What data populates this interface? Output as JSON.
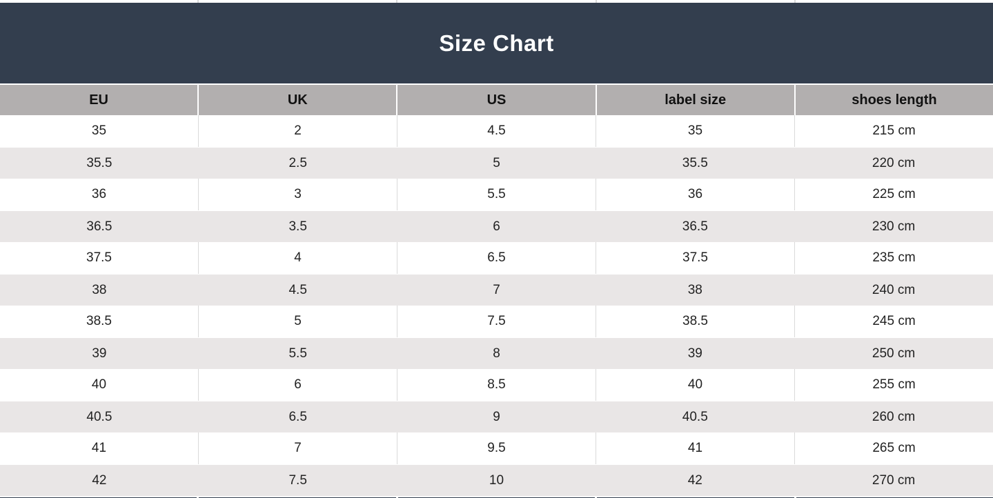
{
  "title": "Size Chart",
  "colors": {
    "navy": "#333e4e",
    "header_gray": "#b2afaf",
    "row_alt_gray": "#e9e6e6",
    "grid_light": "#d9d9d9",
    "text": "#222222",
    "title_text": "#ffffff"
  },
  "chart_data": {
    "type": "table",
    "title": "Size Chart",
    "columns": [
      "EU",
      "UK",
      "US",
      "label size",
      "shoes length"
    ],
    "rows": [
      [
        "35",
        "2",
        "4.5",
        "35",
        "215 cm"
      ],
      [
        "35.5",
        "2.5",
        "5",
        "35.5",
        "220 cm"
      ],
      [
        "36",
        "3",
        "5.5",
        "36",
        "225 cm"
      ],
      [
        "36.5",
        "3.5",
        "6",
        "36.5",
        "230 cm"
      ],
      [
        "37.5",
        "4",
        "6.5",
        "37.5",
        "235 cm"
      ],
      [
        "38",
        "4.5",
        "7",
        "38",
        "240 cm"
      ],
      [
        "38.5",
        "5",
        "7.5",
        "38.5",
        "245 cm"
      ],
      [
        "39",
        "5.5",
        "8",
        "39",
        "250 cm"
      ],
      [
        "40",
        "6",
        "8.5",
        "40",
        "255 cm"
      ],
      [
        "40.5",
        "6.5",
        "9",
        "40.5",
        "260 cm"
      ],
      [
        "41",
        "7",
        "9.5",
        "41",
        "265 cm"
      ],
      [
        "42",
        "7.5",
        "10",
        "42",
        "270 cm"
      ]
    ],
    "layout": {
      "column_count": 5,
      "row_striping": "white/gray alternating starting white",
      "header_background": "gray",
      "title_background": "navy"
    }
  }
}
